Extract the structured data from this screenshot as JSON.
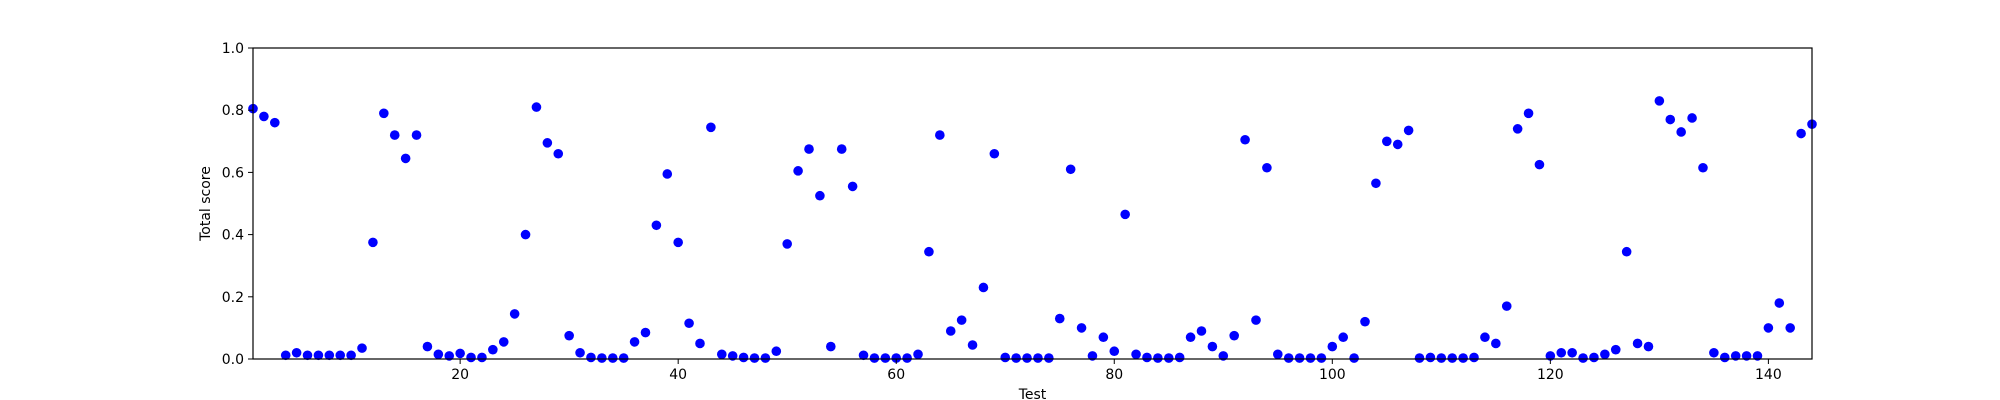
{
  "chart_data": {
    "type": "scatter",
    "title": "",
    "xlabel": "Test",
    "ylabel": "Total score",
    "xlim": [
      1,
      144
    ],
    "ylim": [
      0.0,
      1.0
    ],
    "grid": false,
    "marker_color": "#0000ff",
    "xticks": [
      20,
      40,
      60,
      80,
      100,
      120,
      140
    ],
    "yticks": [
      "0.0",
      "0.2",
      "0.4",
      "0.6",
      "0.8",
      "1.0"
    ],
    "series": [
      {
        "x": [
          1,
          2,
          3,
          4,
          5,
          6,
          7,
          8,
          9,
          10,
          11,
          12,
          13,
          14,
          15,
          16,
          17,
          18,
          19,
          20,
          21,
          22,
          23,
          24,
          25,
          26,
          27,
          28,
          29,
          30,
          31,
          32,
          33,
          34,
          35,
          36,
          37,
          38,
          39,
          40,
          41,
          42,
          43,
          44,
          45,
          46,
          47,
          48,
          49,
          50,
          51,
          52,
          53,
          54,
          55,
          56,
          57,
          58,
          59,
          60,
          61,
          62,
          63,
          64,
          65,
          66,
          67,
          68,
          69,
          70,
          71,
          72,
          73,
          74,
          75,
          76,
          77,
          78,
          79,
          80,
          81,
          82,
          83,
          84,
          85,
          86,
          87,
          88,
          89,
          90,
          91,
          92,
          93,
          94,
          95,
          96,
          97,
          98,
          99,
          100,
          101,
          102,
          103,
          104,
          105,
          106,
          107,
          108,
          109,
          110,
          111,
          112,
          113,
          114,
          115,
          116,
          117,
          118,
          119,
          120,
          121,
          122,
          123,
          124,
          125,
          126,
          127,
          128,
          129,
          130,
          131,
          132,
          133,
          134,
          135,
          136,
          137,
          138,
          139,
          140,
          141,
          142,
          143,
          144
        ],
        "y": [
          0.805,
          0.78,
          0.76,
          0.012,
          0.02,
          0.012,
          0.012,
          0.012,
          0.012,
          0.012,
          0.035,
          0.375,
          0.79,
          0.72,
          0.645,
          0.72,
          0.04,
          0.015,
          0.01,
          0.018,
          0.005,
          0.005,
          0.03,
          0.055,
          0.145,
          0.4,
          0.81,
          0.695,
          0.66,
          0.075,
          0.02,
          0.005,
          0.003,
          0.003,
          0.003,
          0.055,
          0.085,
          0.43,
          0.595,
          0.375,
          0.115,
          0.05,
          0.745,
          0.015,
          0.01,
          0.005,
          0.003,
          0.003,
          0.025,
          0.37,
          0.605,
          0.675,
          0.525,
          0.04,
          0.675,
          0.555,
          0.012,
          0.003,
          0.003,
          0.003,
          0.003,
          0.015,
          0.345,
          0.72,
          0.09,
          0.125,
          0.045,
          0.23,
          0.66,
          0.005,
          0.003,
          0.003,
          0.003,
          0.003,
          0.13,
          0.61,
          0.1,
          0.01,
          0.07,
          0.025,
          0.465,
          0.015,
          0.005,
          0.003,
          0.003,
          0.005,
          0.07,
          0.09,
          0.04,
          0.01,
          0.075,
          0.705,
          0.125,
          0.615,
          0.015,
          0.003,
          0.003,
          0.003,
          0.003,
          0.04,
          0.07,
          0.003,
          0.12,
          0.565,
          0.7,
          0.69,
          0.735,
          0.003,
          0.005,
          0.003,
          0.003,
          0.003,
          0.005,
          0.07,
          0.05,
          0.17,
          0.74,
          0.79,
          0.625,
          0.01,
          0.02,
          0.02,
          0.003,
          0.005,
          0.015,
          0.03,
          0.345,
          0.05,
          0.04,
          0.83,
          0.77,
          0.73,
          0.775,
          0.615,
          0.02,
          0.005,
          0.01,
          0.01,
          0.01,
          0.1,
          0.18,
          0.1,
          0.725,
          0.755
        ]
      }
    ]
  }
}
